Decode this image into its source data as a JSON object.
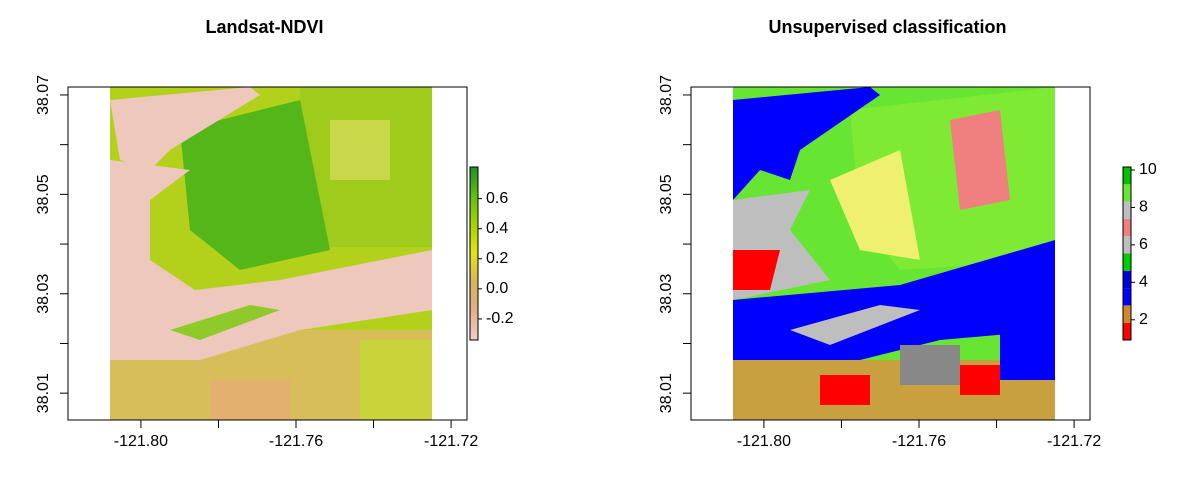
{
  "chart_data": [
    {
      "type": "raster",
      "title": "Landsat-NDVI",
      "xlim": [
        -121.8188,
        -121.7159
      ],
      "xticks": [
        {
          "value": -121.8,
          "label": "-121.80"
        },
        {
          "value": -121.76,
          "label": "-121.76"
        },
        {
          "value": -121.72,
          "label": "-121.72"
        }
      ],
      "x_minor_ticks": [
        -121.78,
        -121.74
      ],
      "ylim": [
        38.0046,
        38.0716
      ],
      "yticks": [
        38.07,
        38.05,
        38.03,
        38.01
      ],
      "y_minor_ticks": [
        38.06,
        38.04,
        38.02
      ],
      "colorbar": {
        "lim": [
          -0.34,
          0.81
        ],
        "ticks": [
          0.6,
          0.4,
          0.2,
          {
            "value": 0,
            "label": "0.0"
          },
          -0.2
        ],
        "gradient": [
          "#f2cfc7",
          "#e0b08a",
          "#d9b35a",
          "#e3e31a",
          "#a3d400",
          "#5fbf10",
          "#1f8f2a"
        ]
      }
    },
    {
      "type": "raster",
      "title": "Unsupervised classification",
      "xlim": [
        -121.8188,
        -121.7159
      ],
      "xticks": [
        {
          "value": -121.8,
          "label": "-121.80"
        },
        {
          "value": -121.76,
          "label": "-121.76"
        },
        {
          "value": -121.72,
          "label": "-121.72"
        }
      ],
      "x_minor_ticks": [
        -121.78,
        -121.74
      ],
      "ylim": [
        38.0046,
        38.0716
      ],
      "yticks": [
        38.07,
        38.05,
        38.03,
        38.01
      ],
      "y_minor_ticks": [
        38.06,
        38.04,
        38.02
      ],
      "colorbar": {
        "lim": [
          0.92,
          10.16
        ],
        "ticks": [
          10,
          8,
          6,
          4,
          2
        ],
        "classes": [
          "#ff0000",
          "#d2872d",
          "#0000ff",
          "#0000dd",
          "#00cd00",
          "#bebebe",
          "#f08080",
          "#bebebe",
          "#66e633",
          "#00c000"
        ]
      }
    }
  ]
}
